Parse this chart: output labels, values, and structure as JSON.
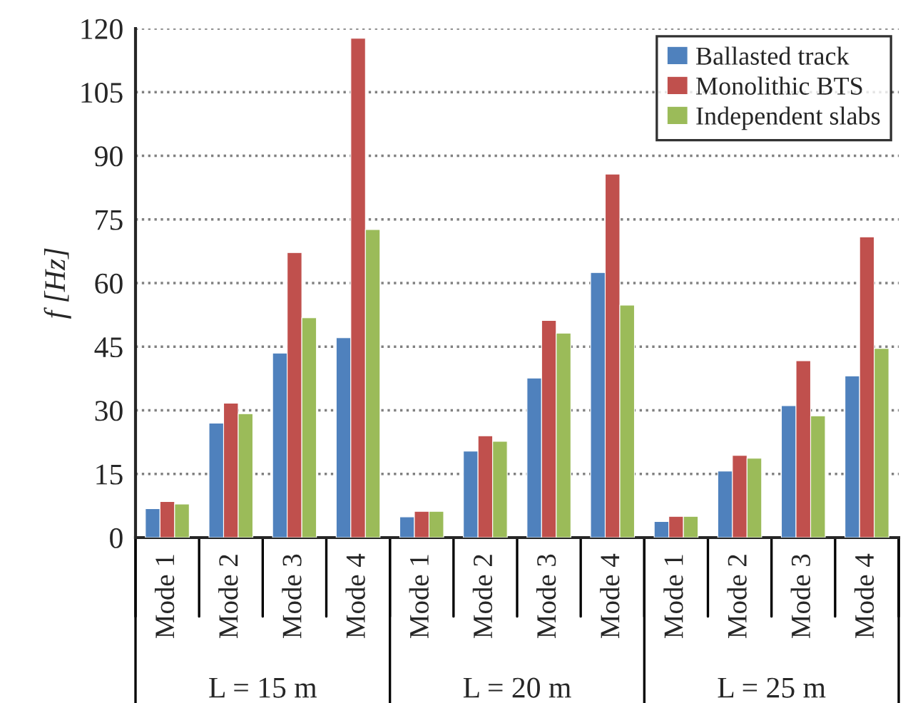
{
  "chart_data": {
    "type": "bar",
    "ylabel": "f [Hz]",
    "categories": [
      "Mode 1",
      "Mode 2",
      "Mode 3",
      "Mode 4",
      "Mode 1",
      "Mode 2",
      "Mode 3",
      "Mode 4",
      "Mode 1",
      "Mode 2",
      "Mode 3",
      "Mode 4"
    ],
    "series": [
      {
        "name": "Ballasted track",
        "color": "#4f81bd",
        "values": [
          6.8,
          27.0,
          43.5,
          47.1,
          4.9,
          20.4,
          37.6,
          62.5,
          3.8,
          15.7,
          31.1,
          38.1
        ]
      },
      {
        "name": "Monolithic BTS",
        "color": "#c0504d",
        "values": [
          8.5,
          31.7,
          67.2,
          117.7,
          6.2,
          24.0,
          51.2,
          85.7,
          5.0,
          19.4,
          41.7,
          70.9
        ]
      },
      {
        "name": "Independent slabs",
        "color": "#9bbb59",
        "values": [
          7.9,
          29.2,
          51.8,
          72.6,
          6.2,
          22.7,
          48.2,
          54.8,
          5.0,
          18.7,
          28.7,
          44.6
        ]
      }
    ],
    "annotations": [
      "L = 15 m",
      "L = 20 m",
      "L = 25 m"
    ],
    "ylim": [
      0,
      120
    ],
    "yticks": [
      0,
      15,
      30,
      45,
      60,
      75,
      90,
      105,
      120
    ],
    "grid": "y",
    "legend": "top right"
  }
}
